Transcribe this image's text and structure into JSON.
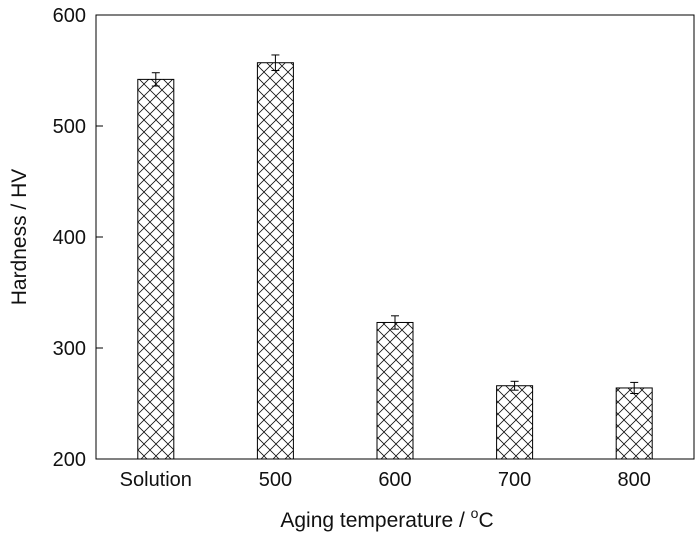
{
  "chart_data": {
    "type": "bar",
    "title": "",
    "xlabel": "Aging temperature / ",
    "xlabel_unit_superscript": "o",
    "xlabel_unit": "C",
    "ylabel": "Hardness / HV",
    "categories": [
      "Solution",
      "500",
      "600",
      "700",
      "800"
    ],
    "values": [
      542,
      557,
      323,
      266,
      264
    ],
    "errors": [
      6,
      7,
      6,
      4,
      5
    ],
    "ylim": [
      200,
      600
    ],
    "yticks": [
      200,
      300,
      400,
      500,
      600
    ],
    "grid": false,
    "legend": "none",
    "bar_fill": "crosshatch",
    "colors": {
      "bar_stroke": "#000000",
      "hatch": "#111111",
      "axis": "#000000"
    }
  }
}
